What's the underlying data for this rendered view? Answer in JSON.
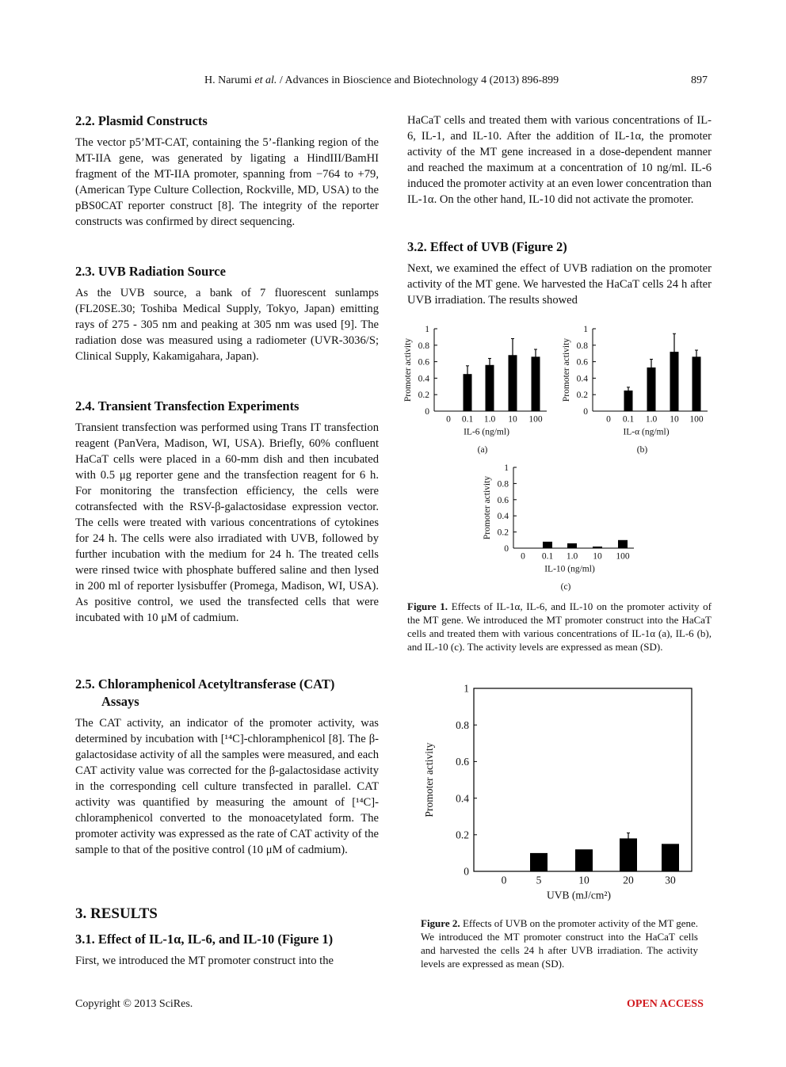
{
  "header": {
    "author": "H. Narumi",
    "etal": "et al.",
    "journal": "/ Advances in Bioscience and Biotechnology 4 (2013) 896-899",
    "page": "897"
  },
  "left": {
    "sections": [
      {
        "heading": "2.2. Plasmid Constructs",
        "text": "The vector p5’MT-CAT, containing the 5’-flanking region of the MT-IIA gene, was generated by ligating a HindIII/BamHI fragment of the MT-IIA promoter, spanning from −764 to +79, (American Type Culture Collection, Rockville, MD, USA) to the pBS0CAT reporter construct [8]. The integrity of the reporter constructs was confirmed by direct sequencing."
      },
      {
        "heading": "2.3. UVB Radiation Source",
        "text": "As the UVB source, a bank of 7 fluorescent sunlamps (FL20SE.30; Toshiba Medical Supply, Tokyo, Japan) emitting rays of 275 - 305 nm and peaking at 305 nm was used [9]. The radiation dose was measured using a radiometer (UVR-3036/S; Clinical Supply, Kakamigahara, Japan)."
      },
      {
        "heading": "2.4. Transient Transfection Experiments",
        "text": "Transient transfection was performed using Trans IT transfection reagent (PanVera, Madison, WI, USA). Briefly, 60% confluent HaCaT cells were placed in a 60-mm dish and then incubated with 0.5 μg reporter gene and the transfection reagent for 6 h. For monitoring the transfection efficiency, the cells were cotransfected with the RSV-β-galactosidase expression vector. The cells were treated with various concentrations of cytokines for 24 h. The cells were also irradiated with UVB, followed by further incubation with the medium for 24 h. The treated cells were rinsed twice with phosphate buffered saline and then lysed in 200 ml of reporter lysisbuffer (Promega, Madison, WI, USA). As positive control, we used the transfected cells that were incubated with 10 μM of cadmium."
      },
      {
        "heading": "2.5. Chloramphenicol Acetyltransferase (CAT) Assays",
        "text": "The CAT activity, an indicator of the promoter activity, was determined by incubation with [¹⁴C]-chloramphenicol [8]. The β-galactosidase activity of all the samples were measured, and each CAT activity value was corrected for the β-galactosidase activity in the corresponding cell culture transfected in parallel. CAT activity was quantified by measuring the amount of [¹⁴C]-chloramphenicol converted to the monoacetylated form. The promoter activity was expressed as the rate of CAT activity of the sample to that of the positive control (10 μM of cadmium)."
      },
      {
        "heading": "3. RESULTS"
      },
      {
        "heading": "3.1. Effect of IL-1α, IL-6, and IL-10 (Figure 1)",
        "text": "First, we introduced the MT promoter construct into the"
      }
    ]
  },
  "right": {
    "continued": "HaCaT cells and treated them with various concentrations of IL-6, IL-1, and IL-10. After the addition of IL-1α, the promoter activity of the MT gene increased in a dose-dependent manner and reached the maximum at a concentration of 10 ng/ml. IL-6 induced the promoter activity at an even lower concentration than IL-1α. On the other hand, IL-10 did not activate the promoter.",
    "sections": [
      {
        "heading": "3.2. Effect of UVB (Figure 2)",
        "text": "Next, we examined the effect of UVB radiation on the promoter activity of the MT gene. We harvested the HaCaT cells 24 h after UVB irradiation. The results showed"
      }
    ]
  },
  "figure1_caption": {
    "label": "Figure 1.",
    "text": "Effects of IL-1α, IL-6, and IL-10 on the promoter activity of the MT gene. We introduced the MT promoter construct into the HaCaT cells and treated them with various concentrations of IL-1α (a), IL-6 (b), and IL-10 (c). The activity levels are expressed as mean (SD)."
  },
  "figure2_caption": {
    "label": "Figure 2.",
    "text": "Effects of UVB on the promoter activity of the MT gene. We introduced the MT promoter construct into the HaCaT cells and harvested the cells 24 h after UVB irradiation. The activity levels are expressed as mean (SD)."
  },
  "footer": {
    "copyright": "Copyright © 2013 SciRes.",
    "access": "OPEN ACCESS"
  },
  "chart_data": [
    {
      "type": "bar",
      "panel": "(a)",
      "x_label": "IL-6 (ng/ml)",
      "y_label": "Promoter activity",
      "color": "#000000",
      "categories": [
        "0",
        "0.1",
        "1.0",
        "10",
        "100"
      ],
      "values": [
        0,
        0.45,
        0.56,
        0.68,
        0.66
      ],
      "errors": [
        null,
        0.1,
        0.08,
        0.2,
        0.09
      ],
      "ylim": [
        0,
        1
      ],
      "yticks": [
        0,
        0.2,
        0.4,
        0.6,
        0.8,
        1
      ]
    },
    {
      "type": "bar",
      "panel": "(b)",
      "x_label": "IL-α (ng/ml)",
      "y_label": "Promoter activity",
      "color": "#000000",
      "categories": [
        "0",
        "0.1",
        "1.0",
        "10",
        "100"
      ],
      "values": [
        0,
        0.25,
        0.53,
        0.72,
        0.66
      ],
      "errors": [
        null,
        0.04,
        0.1,
        0.22,
        0.08
      ],
      "ylim": [
        0,
        1
      ],
      "yticks": [
        0,
        0.2,
        0.4,
        0.6,
        0.8,
        1
      ]
    },
    {
      "type": "bar",
      "panel": "(c)",
      "x_label": "IL-10 (ng/ml)",
      "y_label": "Promoter activity",
      "color": "#000000",
      "categories": [
        "0",
        "0.1",
        "1.0",
        "10",
        "100"
      ],
      "values": [
        0,
        0.08,
        0.06,
        0.02,
        0.1
      ],
      "ylim": [
        0,
        1
      ],
      "yticks": [
        0,
        0.2,
        0.4,
        0.6,
        0.8,
        1
      ]
    },
    {
      "type": "bar",
      "x_label": "UVB (mJ/cm²)",
      "y_label": "Promoter activity",
      "color": "#000000",
      "categories": [
        "0",
        "5",
        "10",
        "20",
        "30"
      ],
      "values": [
        0,
        0.1,
        0.12,
        0.18,
        0.15
      ],
      "errors": [
        null,
        null,
        null,
        0.03,
        null
      ],
      "ylim": [
        0,
        1
      ],
      "yticks": [
        0,
        0.2,
        0.4,
        0.6,
        0.8,
        1
      ]
    }
  ]
}
